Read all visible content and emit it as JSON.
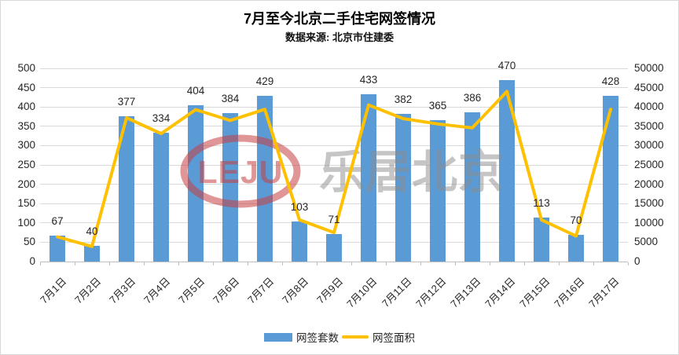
{
  "header": {
    "title": "7月至今北京二手住宅网签情况",
    "subtitle": "数据来源: 北京市住建委"
  },
  "watermark": {
    "logo_text": "LEJU",
    "brand_text": "乐居北京",
    "logo_color": "rgba(199,62,66,0.55)",
    "brand_color": "rgba(140,140,140,0.5)"
  },
  "legend": {
    "items": [
      {
        "label": "网签套数",
        "type": "bar",
        "color": "#5b9bd5"
      },
      {
        "label": "网签面积",
        "type": "line",
        "color": "#ffc000"
      }
    ]
  },
  "chart_data": {
    "type": "bar",
    "subtype": "bar+line combo, dual axis",
    "title": "7月至今北京二手住宅网签情况",
    "subtitle": "数据来源: 北京市住建委",
    "categories": [
      "7月1日",
      "7月2日",
      "7月3日",
      "7月4日",
      "7月5日",
      "7月6日",
      "7月7日",
      "7月8日",
      "7月9日",
      "7月10日",
      "7月11日",
      "7月12日",
      "7月13日",
      "7月14日",
      "7月15日",
      "7月16日",
      "7月17日"
    ],
    "series": [
      {
        "name": "网签套数",
        "type": "bar",
        "axis": "left",
        "color": "#5b9bd5",
        "values": [
          67,
          40,
          377,
          334,
          404,
          384,
          429,
          103,
          71,
          433,
          382,
          365,
          386,
          470,
          113,
          70,
          428
        ],
        "labels_shown": true
      },
      {
        "name": "网签面积",
        "type": "line",
        "axis": "right",
        "color": "#ffc000",
        "estimated": true,
        "values": [
          6400,
          3900,
          37200,
          33100,
          39300,
          36500,
          39400,
          10800,
          7500,
          40500,
          37000,
          35600,
          34600,
          44000,
          10800,
          6600,
          39400
        ],
        "labels_shown": false
      }
    ],
    "left_axis": {
      "min": 0,
      "max": 500,
      "step": 50,
      "tick_labels": [
        "0",
        "50",
        "100",
        "150",
        "200",
        "250",
        "300",
        "350",
        "400",
        "450",
        "500"
      ]
    },
    "right_axis": {
      "min": 0,
      "max": 50000,
      "step": 5000,
      "tick_labels": [
        "0",
        "5000",
        "10000",
        "15000",
        "20000",
        "25000",
        "30000",
        "35000",
        "40000",
        "45000",
        "50000"
      ]
    },
    "grid": true,
    "legend_position": "bottom"
  }
}
